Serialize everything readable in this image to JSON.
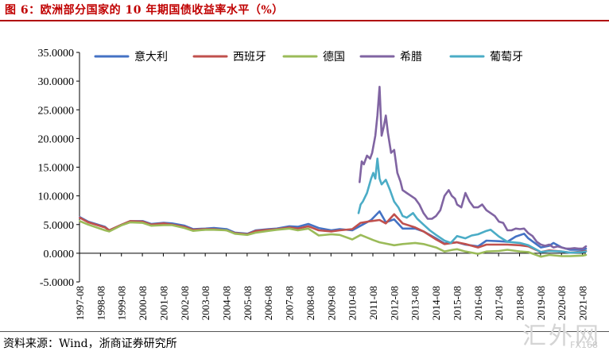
{
  "title": "图 6：欧洲部分国家的 10 年期国债收益率水平（%）",
  "source": "资料来源：Wind，浙商证券研究所",
  "watermark": "汇外网",
  "watermark_sub": "FX168",
  "colors": {
    "title": "#c00000",
    "italy": "#4472c4",
    "spain": "#c0504d",
    "germany": "#9bbb59",
    "greece": "#8064a2",
    "portugal": "#4bacc6"
  },
  "chart_data": {
    "type": "line",
    "title": "欧洲部分国家的 10 年期国债收益率水平（%）",
    "xlabel": "",
    "ylabel": "",
    "ylim": [
      -5,
      35
    ],
    "y_ticks": [
      -5,
      0,
      5,
      10,
      15,
      20,
      25,
      30,
      35
    ],
    "y_tick_labels": [
      "-5.0000",
      "0.0000",
      "5.0000",
      "10.0000",
      "15.0000",
      "20.0000",
      "25.0000",
      "30.0000",
      "35.0000"
    ],
    "xlim": [
      1997.583,
      2021.75
    ],
    "x_ticks": [
      1997.583,
      1998.583,
      1999.583,
      2000.583,
      2001.583,
      2002.583,
      2003.583,
      2004.583,
      2005.583,
      2006.583,
      2007.583,
      2008.583,
      2009.583,
      2010.583,
      2011.583,
      2012.583,
      2013.583,
      2014.583,
      2015.583,
      2016.583,
      2017.583,
      2018.583,
      2019.583,
      2020.583,
      2021.583
    ],
    "x_tick_labels": [
      "1997-08",
      "1998-08",
      "1999-08",
      "2000-08",
      "2001-08",
      "2002-08",
      "2003-08",
      "2004-08",
      "2005-08",
      "2006-08",
      "2007-08",
      "2008-08",
      "2009-08",
      "2010-08",
      "2011-08",
      "2012-08",
      "2013-08",
      "2014-08",
      "2015-08",
      "2016-08",
      "2017-08",
      "2018-08",
      "2019-08",
      "2020-08",
      "2021-08"
    ],
    "legend_position": "top",
    "series": [
      {
        "name": "意大利",
        "x": [
          1997.6,
          1998.0,
          1998.8,
          1999.0,
          1999.6,
          2000.0,
          2000.6,
          2001.0,
          2001.6,
          2002.0,
          2002.6,
          2003.0,
          2003.6,
          2004.0,
          2004.6,
          2005.0,
          2005.6,
          2006.0,
          2006.6,
          2007.0,
          2007.6,
          2008.0,
          2008.5,
          2009.0,
          2009.6,
          2010.0,
          2010.6,
          2011.0,
          2011.5,
          2011.9,
          2012.2,
          2012.6,
          2013.0,
          2013.6,
          2014.0,
          2014.6,
          2015.0,
          2015.6,
          2016.0,
          2016.6,
          2017.0,
          2017.6,
          2018.0,
          2018.4,
          2018.8,
          2019.0,
          2019.6,
          2020.0,
          2020.2,
          2020.6,
          2021.0,
          2021.6,
          2021.75
        ],
        "values": [
          6.3,
          5.5,
          4.6,
          4.0,
          5.0,
          5.6,
          5.6,
          5.1,
          5.3,
          5.2,
          4.8,
          4.2,
          4.3,
          4.4,
          4.2,
          3.6,
          3.4,
          4.0,
          4.2,
          4.3,
          4.7,
          4.6,
          5.1,
          4.4,
          4.0,
          4.2,
          4.0,
          4.8,
          5.8,
          7.3,
          5.4,
          5.9,
          4.3,
          4.3,
          3.8,
          2.6,
          1.7,
          1.9,
          1.5,
          1.2,
          2.2,
          2.1,
          2.0,
          2.9,
          3.4,
          2.6,
          1.0,
          1.3,
          1.8,
          1.0,
          0.6,
          0.6,
          0.8
        ]
      },
      {
        "name": "西班牙",
        "x": [
          1997.6,
          1998.0,
          1998.8,
          1999.0,
          1999.6,
          2000.0,
          2000.6,
          2001.0,
          2001.6,
          2002.0,
          2002.6,
          2003.0,
          2003.6,
          2004.0,
          2004.6,
          2005.0,
          2005.6,
          2006.0,
          2006.6,
          2007.0,
          2007.6,
          2008.0,
          2008.5,
          2009.0,
          2009.6,
          2010.0,
          2010.6,
          2011.0,
          2011.5,
          2011.9,
          2012.2,
          2012.6,
          2013.0,
          2013.6,
          2014.0,
          2014.6,
          2015.0,
          2015.6,
          2016.0,
          2016.6,
          2017.0,
          2017.6,
          2018.0,
          2018.6,
          2019.0,
          2019.6,
          2020.0,
          2020.6,
          2021.0,
          2021.6,
          2021.75
        ],
        "values": [
          6.2,
          5.4,
          4.5,
          4.0,
          5.0,
          5.6,
          5.5,
          5.0,
          5.2,
          5.0,
          4.6,
          4.1,
          4.2,
          4.2,
          4.0,
          3.5,
          3.3,
          3.9,
          4.1,
          4.2,
          4.5,
          4.3,
          4.7,
          4.0,
          3.8,
          4.0,
          4.2,
          5.3,
          5.6,
          5.8,
          5.2,
          6.8,
          5.2,
          4.5,
          3.8,
          2.4,
          1.6,
          1.9,
          1.6,
          1.0,
          1.5,
          1.5,
          1.5,
          1.4,
          1.2,
          0.2,
          0.5,
          0.3,
          0.1,
          0.3,
          0.4
        ]
      },
      {
        "name": "德国",
        "x": [
          1997.6,
          1998.0,
          1998.8,
          1999.0,
          1999.6,
          2000.0,
          2000.6,
          2001.0,
          2001.6,
          2002.0,
          2002.6,
          2003.0,
          2003.6,
          2004.0,
          2004.6,
          2005.0,
          2005.6,
          2006.0,
          2006.6,
          2007.0,
          2007.6,
          2008.0,
          2008.5,
          2009.0,
          2009.6,
          2010.0,
          2010.6,
          2011.0,
          2011.6,
          2011.9,
          2012.6,
          2013.0,
          2013.6,
          2014.0,
          2014.6,
          2015.0,
          2015.4,
          2015.6,
          2016.0,
          2016.6,
          2017.0,
          2017.6,
          2018.0,
          2018.6,
          2019.0,
          2019.6,
          2020.0,
          2020.6,
          2021.0,
          2021.6,
          2021.75
        ],
        "values": [
          5.6,
          5.0,
          4.0,
          3.8,
          4.9,
          5.4,
          5.3,
          4.8,
          4.9,
          4.9,
          4.4,
          3.9,
          4.1,
          4.1,
          4.0,
          3.4,
          3.2,
          3.6,
          3.9,
          4.1,
          4.3,
          4.0,
          4.3,
          3.1,
          3.3,
          3.2,
          2.4,
          3.2,
          2.3,
          1.9,
          1.4,
          1.6,
          1.8,
          1.6,
          1.0,
          0.3,
          0.6,
          0.7,
          0.3,
          -0.1,
          0.3,
          0.4,
          0.6,
          0.3,
          0.2,
          -0.6,
          -0.3,
          -0.5,
          -0.5,
          -0.4,
          -0.3
        ]
      },
      {
        "name": "希腊",
        "x": [
          2010.95,
          2011.05,
          2011.15,
          2011.3,
          2011.45,
          2011.55,
          2011.7,
          2011.8,
          2011.9,
          2012.0,
          2012.1,
          2012.2,
          2012.3,
          2012.45,
          2012.6,
          2012.75,
          2012.9,
          2013.0,
          2013.2,
          2013.4,
          2013.6,
          2013.8,
          2014.0,
          2014.2,
          2014.4,
          2014.6,
          2014.8,
          2015.0,
          2015.2,
          2015.35,
          2015.5,
          2015.6,
          2015.8,
          2016.0,
          2016.2,
          2016.4,
          2016.6,
          2016.8,
          2017.0,
          2017.2,
          2017.4,
          2017.6,
          2017.8,
          2018.0,
          2018.2,
          2018.4,
          2018.6,
          2018.8,
          2019.0,
          2019.2,
          2019.4,
          2019.6,
          2019.8,
          2020.0,
          2020.2,
          2020.4,
          2020.6,
          2020.8,
          2021.0,
          2021.2,
          2021.4,
          2021.6,
          2021.75
        ],
        "values": [
          12.4,
          16.0,
          15.5,
          17.0,
          16.5,
          17.5,
          20.5,
          24.0,
          29.0,
          20.5,
          22.0,
          24.0,
          21.0,
          17.5,
          18.0,
          14.0,
          12.5,
          11.0,
          10.5,
          10.0,
          9.5,
          8.5,
          7.0,
          6.0,
          6.0,
          6.5,
          7.5,
          10.0,
          11.0,
          10.0,
          9.5,
          8.5,
          8.0,
          10.5,
          9.0,
          8.0,
          8.0,
          8.5,
          7.5,
          7.0,
          6.5,
          5.5,
          5.3,
          4.0,
          4.0,
          4.3,
          4.2,
          4.3,
          3.5,
          3.0,
          2.0,
          1.5,
          1.3,
          1.5,
          1.0,
          1.2,
          1.0,
          0.8,
          0.8,
          0.9,
          0.8,
          0.8,
          1.2
        ]
      },
      {
        "name": "葡萄牙",
        "x": [
          2010.9,
          2011.0,
          2011.1,
          2011.3,
          2011.5,
          2011.6,
          2011.7,
          2011.8,
          2011.9,
          2012.0,
          2012.2,
          2012.4,
          2012.6,
          2012.8,
          2013.0,
          2013.2,
          2013.5,
          2013.7,
          2014.0,
          2014.3,
          2014.6,
          2015.0,
          2015.3,
          2015.6,
          2016.0,
          2016.3,
          2016.6,
          2017.0,
          2017.2,
          2017.6,
          2018.0,
          2018.6,
          2019.0,
          2019.6,
          2020.0,
          2020.6,
          2021.0,
          2021.6,
          2021.75
        ],
        "values": [
          7.0,
          8.5,
          9.0,
          10.5,
          13.0,
          14.0,
          13.0,
          16.5,
          13.0,
          12.0,
          12.8,
          11.0,
          9.0,
          8.0,
          6.5,
          6.2,
          7.0,
          6.0,
          5.0,
          4.0,
          3.2,
          2.2,
          1.8,
          3.0,
          2.6,
          3.1,
          3.3,
          3.9,
          4.1,
          2.9,
          2.0,
          1.8,
          1.4,
          0.2,
          0.4,
          0.3,
          0.1,
          0.2,
          0.3
        ]
      }
    ]
  }
}
